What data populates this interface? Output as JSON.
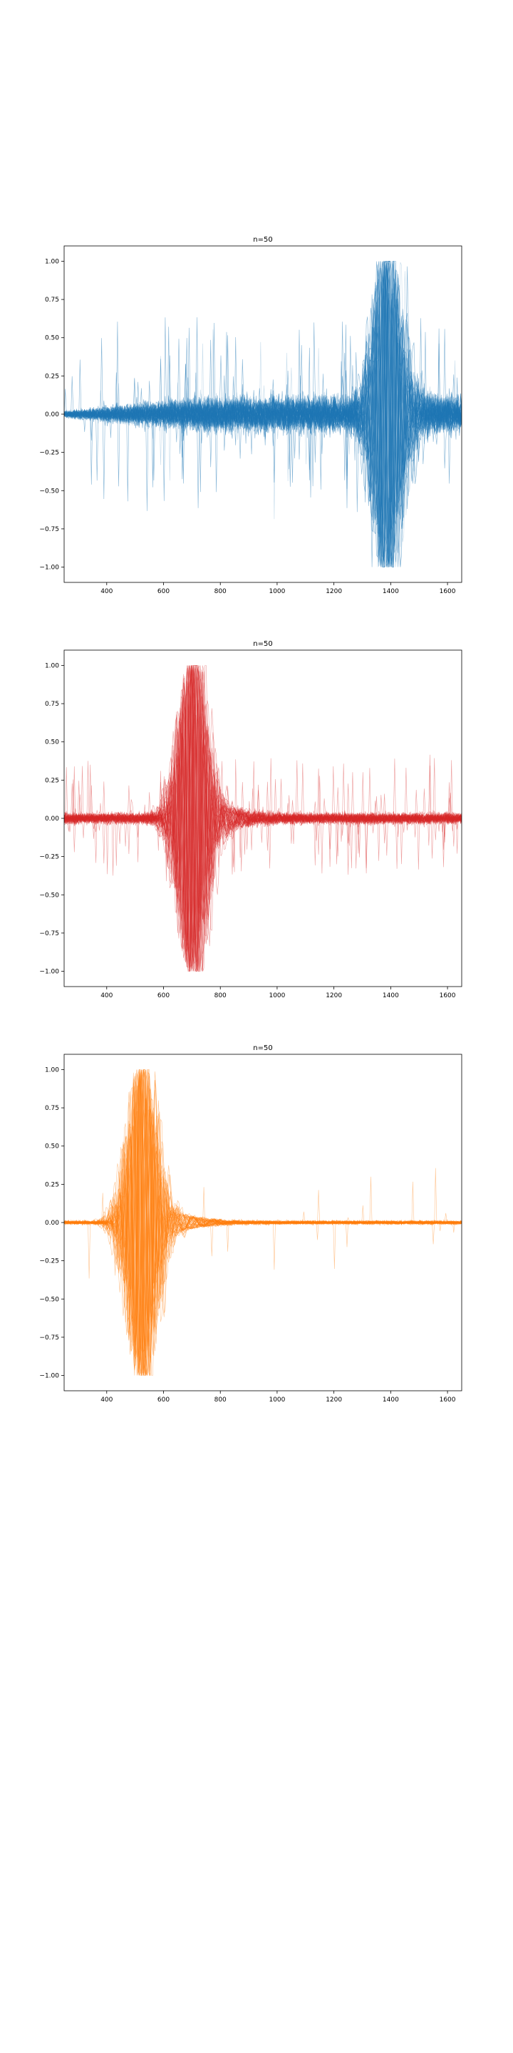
{
  "chart_data": [
    {
      "type": "line",
      "title": "n=50",
      "series_count": 50,
      "color": "#1f77b4",
      "peak_x": 1390,
      "signal_start_x": 700,
      "xlim": [
        250,
        1650
      ],
      "ylim": [
        -1.1,
        1.1
      ],
      "xticks": [
        400,
        600,
        800,
        1000,
        1200,
        1400,
        1600
      ],
      "yticks": [
        1.0,
        0.75,
        0.5,
        0.25,
        0.0,
        -0.25,
        -0.5,
        -0.75,
        -1.0
      ],
      "ytick_labels": [
        "1.00",
        "0.75",
        "0.50",
        "0.25",
        "0.00",
        "−0.25",
        "−0.50",
        "−0.75",
        "−1.00"
      ],
      "grid": false
    },
    {
      "type": "line",
      "title": "n=50",
      "series_count": 50,
      "color": "#d62728",
      "peak_x": 705,
      "xlim": [
        250,
        1650
      ],
      "ylim": [
        -1.1,
        1.1
      ],
      "xticks": [
        400,
        600,
        800,
        1000,
        1200,
        1400,
        1600
      ],
      "yticks": [
        1.0,
        0.75,
        0.5,
        0.25,
        0.0,
        -0.25,
        -0.5,
        -0.75,
        -1.0
      ],
      "ytick_labels": [
        "1.00",
        "0.75",
        "0.50",
        "0.25",
        "0.00",
        "−0.25",
        "−0.50",
        "−0.75",
        "−1.00"
      ],
      "grid": false
    },
    {
      "type": "line",
      "title": "n=50",
      "series_count": 50,
      "color": "#ff7f0e",
      "peak_x": 525,
      "xlim": [
        250,
        1650
      ],
      "ylim": [
        -1.1,
        1.1
      ],
      "xticks": [
        400,
        600,
        800,
        1000,
        1200,
        1400,
        1600
      ],
      "yticks": [
        1.0,
        0.75,
        0.5,
        0.25,
        0.0,
        -0.25,
        -0.5,
        -0.75,
        -1.0
      ],
      "ytick_labels": [
        "1.00",
        "0.75",
        "0.50",
        "0.25",
        "0.00",
        "−0.25",
        "−0.50",
        "−0.75",
        "−1.00"
      ],
      "grid": false
    }
  ]
}
